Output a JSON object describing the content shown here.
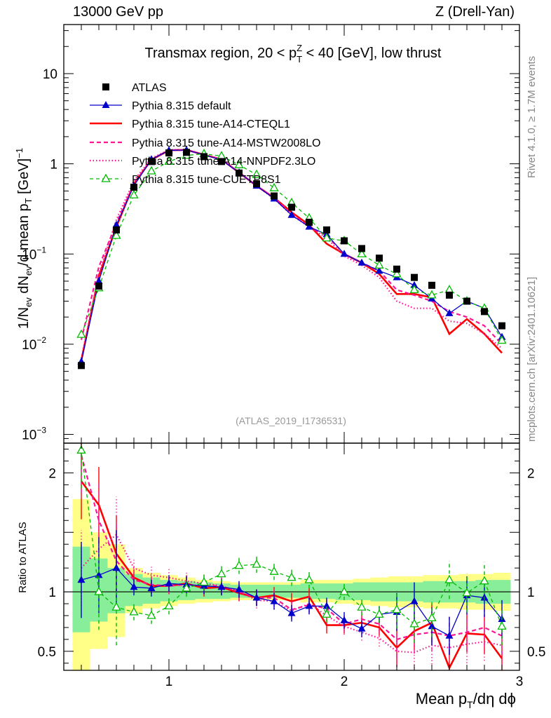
{
  "header": {
    "left": "13000 GeV pp",
    "right": "Z (Drell-Yan)"
  },
  "side_labels": {
    "rivet": "Rivet 4.1.0, ≥ 1.7M events",
    "mcplots": "mcplots.cern.ch [arXiv:2401.10621]"
  },
  "chart_data": {
    "type": "line",
    "title": "Transmax region, 20 < pTZ < 40 [GeV], low thrust",
    "title_parts": {
      "before": "Transmax region, 20 < p",
      "sup": "Z",
      "sub": "T",
      "after": " < 40 [GeV], low thrust"
    },
    "analysis_id": "(ATLAS_2019_I1736531)",
    "xlabel": "Mean pT/dη dφ",
    "xlabel_parts": {
      "a": "Mean p",
      "sub": "T",
      "b": "/dη dϕ"
    },
    "ylabel_main": "1/Nev dNev/d mean pT [GeV]-1",
    "ylabel_ratio": "Ratio to ATLAS",
    "xlim": [
      0.4,
      3.0
    ],
    "ylim_main": [
      0.0008,
      35
    ],
    "ylim_ratio": [
      0.34,
      2.25
    ],
    "main_tick_labels": [
      {
        "v": 10,
        "label": "10"
      },
      {
        "v": 1,
        "label": "1"
      },
      {
        "v": 0.1,
        "label": "10",
        "exp": "−1"
      },
      {
        "v": 0.01,
        "label": "10",
        "exp": "−2"
      },
      {
        "v": 0.001,
        "label": "10",
        "exp": "−3"
      }
    ],
    "ratio_tick_labels": [
      {
        "v": 2,
        "label": "2"
      },
      {
        "v": 1,
        "label": "1"
      },
      {
        "v": 0.5,
        "label": "0.5"
      }
    ],
    "x_tick_labels": [
      {
        "v": 1,
        "label": "1"
      },
      {
        "v": 2,
        "label": "2"
      },
      {
        "v": 3,
        "label": "3"
      }
    ],
    "x": [
      0.5,
      0.6,
      0.7,
      0.8,
      0.9,
      1.0,
      1.1,
      1.2,
      1.3,
      1.4,
      1.5,
      1.6,
      1.7,
      1.8,
      1.9,
      2.0,
      2.1,
      2.2,
      2.3,
      2.4,
      2.5,
      2.6,
      2.7,
      2.8,
      2.9
    ],
    "band_inner": [
      1.38,
      1.28,
      1.2,
      1.15,
      1.12,
      1.1,
      1.09,
      1.08,
      1.07,
      1.06,
      1.06,
      1.06,
      1.06,
      1.07,
      1.07,
      1.07,
      1.08,
      1.08,
      1.08,
      1.08,
      1.09,
      1.09,
      1.09,
      1.1,
      1.1
    ],
    "band_outer": [
      1.78,
      1.5,
      1.4,
      1.2,
      1.16,
      1.14,
      1.12,
      1.1,
      1.09,
      1.08,
      1.08,
      1.08,
      1.08,
      1.1,
      1.1,
      1.1,
      1.11,
      1.12,
      1.13,
      1.13,
      1.14,
      1.14,
      1.15,
      1.15,
      1.16
    ],
    "band_inner_lo": [
      0.66,
      0.75,
      0.82,
      0.88,
      0.9,
      0.92,
      0.93,
      0.94,
      0.94,
      0.95,
      0.95,
      0.95,
      0.95,
      0.94,
      0.94,
      0.93,
      0.93,
      0.92,
      0.92,
      0.92,
      0.91,
      0.91,
      0.91,
      0.9,
      0.9
    ],
    "band_outer_lo": [
      0.34,
      0.52,
      0.62,
      0.82,
      0.86,
      0.88,
      0.9,
      0.91,
      0.92,
      0.93,
      0.93,
      0.93,
      0.93,
      0.91,
      0.91,
      0.9,
      0.89,
      0.88,
      0.87,
      0.87,
      0.86,
      0.86,
      0.85,
      0.85,
      0.84
    ],
    "series": [
      {
        "name": "ATLAS",
        "color": "#000000",
        "style": "data",
        "values": [
          0.0058,
          0.044,
          0.185,
          0.55,
          1.06,
          1.32,
          1.34,
          1.2,
          1.06,
          0.79,
          0.6,
          0.44,
          0.33,
          0.225,
          0.185,
          0.14,
          0.115,
          0.09,
          0.068,
          0.055,
          0.045,
          0.035,
          0.03,
          0.023,
          0.016
        ],
        "ratio": [
          1,
          1,
          1,
          1,
          1,
          1,
          1,
          1,
          1,
          1,
          1,
          1,
          1,
          1,
          1,
          1,
          1,
          1,
          1,
          1,
          1,
          1,
          1,
          1,
          1
        ]
      },
      {
        "name": "Pythia 8.315 default",
        "color": "#0000cc",
        "style": "solid",
        "marker": "triangle",
        "values": [
          0.0064,
          0.05,
          0.21,
          0.57,
          1.12,
          1.41,
          1.42,
          1.26,
          1.1,
          0.8,
          0.57,
          0.41,
          0.27,
          0.2,
          0.165,
          0.1,
          0.08,
          0.065,
          0.055,
          0.045,
          0.032,
          0.022,
          0.03,
          0.025,
          0.012
        ],
        "ratio": [
          1.1,
          1.14,
          1.2,
          1.04,
          1.03,
          1.07,
          1.06,
          1.05,
          1.04,
          1.02,
          0.95,
          0.92,
          0.82,
          0.88,
          0.88,
          0.76,
          0.69,
          0.81,
          0.83,
          0.92,
          0.71,
          0.63,
          0.97,
          0.95,
          0.77
        ]
      },
      {
        "name": "Pythia 8.315 tune-A14-CTEQL1",
        "color": "#ff0000",
        "style": "thick",
        "values": [
          0.0066,
          0.057,
          0.2,
          0.6,
          1.11,
          1.41,
          1.43,
          1.26,
          1.12,
          0.8,
          0.57,
          0.42,
          0.29,
          0.21,
          0.13,
          0.1,
          0.08,
          0.06,
          0.036,
          0.036,
          0.033,
          0.013,
          0.019,
          0.013,
          0.008
        ],
        "ratio": [
          1.93,
          1.73,
          1.32,
          1.12,
          1.05,
          1.05,
          1.07,
          1.03,
          1.04,
          0.99,
          0.95,
          0.97,
          0.92,
          0.96,
          0.72,
          0.72,
          0.74,
          0.7,
          0.53,
          0.67,
          0.74,
          0.36,
          0.65,
          0.64,
          0.44
        ]
      },
      {
        "name": "Pythia 8.315 tune-A14-MSTW2008LO",
        "color": "#ff1493",
        "style": "dashed",
        "values": [
          0.0112,
          0.072,
          0.22,
          0.6,
          1.12,
          1.41,
          1.42,
          1.26,
          1.12,
          0.8,
          0.57,
          0.42,
          0.28,
          0.2,
          0.16,
          0.1,
          0.08,
          0.065,
          0.04,
          0.035,
          0.03,
          0.023,
          0.02,
          0.016,
          0.01
        ],
        "ratio": [
          2.15,
          1.6,
          1.26,
          1.1,
          1.06,
          1.05,
          1.06,
          1.05,
          1.05,
          1.0,
          0.95,
          0.95,
          0.85,
          0.89,
          0.86,
          0.73,
          0.77,
          0.73,
          0.6,
          0.64,
          0.66,
          0.63,
          0.66,
          0.7,
          0.63
        ]
      },
      {
        "name": "Pythia 8.315 tune-A14-NNPDF2.3LO",
        "color": "#ff1493",
        "style": "dotted",
        "values": [
          0.007,
          0.06,
          0.24,
          0.65,
          1.15,
          1.43,
          1.43,
          1.27,
          1.12,
          0.8,
          0.57,
          0.41,
          0.27,
          0.2,
          0.15,
          0.095,
          0.075,
          0.055,
          0.03,
          0.025,
          0.025,
          0.018,
          0.017,
          0.013,
          0.009
        ],
        "ratio": [
          1.2,
          1.36,
          1.48,
          1.2,
          1.14,
          1.12,
          1.09,
          1.07,
          1.05,
          1.0,
          0.93,
          0.92,
          0.84,
          0.9,
          0.8,
          0.71,
          0.66,
          0.61,
          0.5,
          0.49,
          0.55,
          0.53,
          0.56,
          0.58,
          0.55
        ]
      },
      {
        "name": "Pythia 8.315 tune-CUETP8S1",
        "color": "#00bb00",
        "style": "dashgreen",
        "marker": "open-triangle",
        "values": [
          0.0128,
          0.042,
          0.16,
          0.45,
          0.83,
          1.06,
          1.24,
          1.29,
          1.22,
          0.97,
          0.76,
          0.54,
          0.37,
          0.25,
          0.15,
          0.14,
          0.1,
          0.075,
          0.06,
          0.04,
          0.035,
          0.04,
          0.03,
          0.025,
          0.011
        ],
        "ratio": [
          2.19,
          1.0,
          0.87,
          0.83,
          0.8,
          0.88,
          1.03,
          1.08,
          1.15,
          1.22,
          1.23,
          1.17,
          1.12,
          1.1,
          0.81,
          1.0,
          0.87,
          0.81,
          0.85,
          0.73,
          0.78,
          1.1,
          0.99,
          1.09,
          0.71
        ]
      }
    ]
  }
}
